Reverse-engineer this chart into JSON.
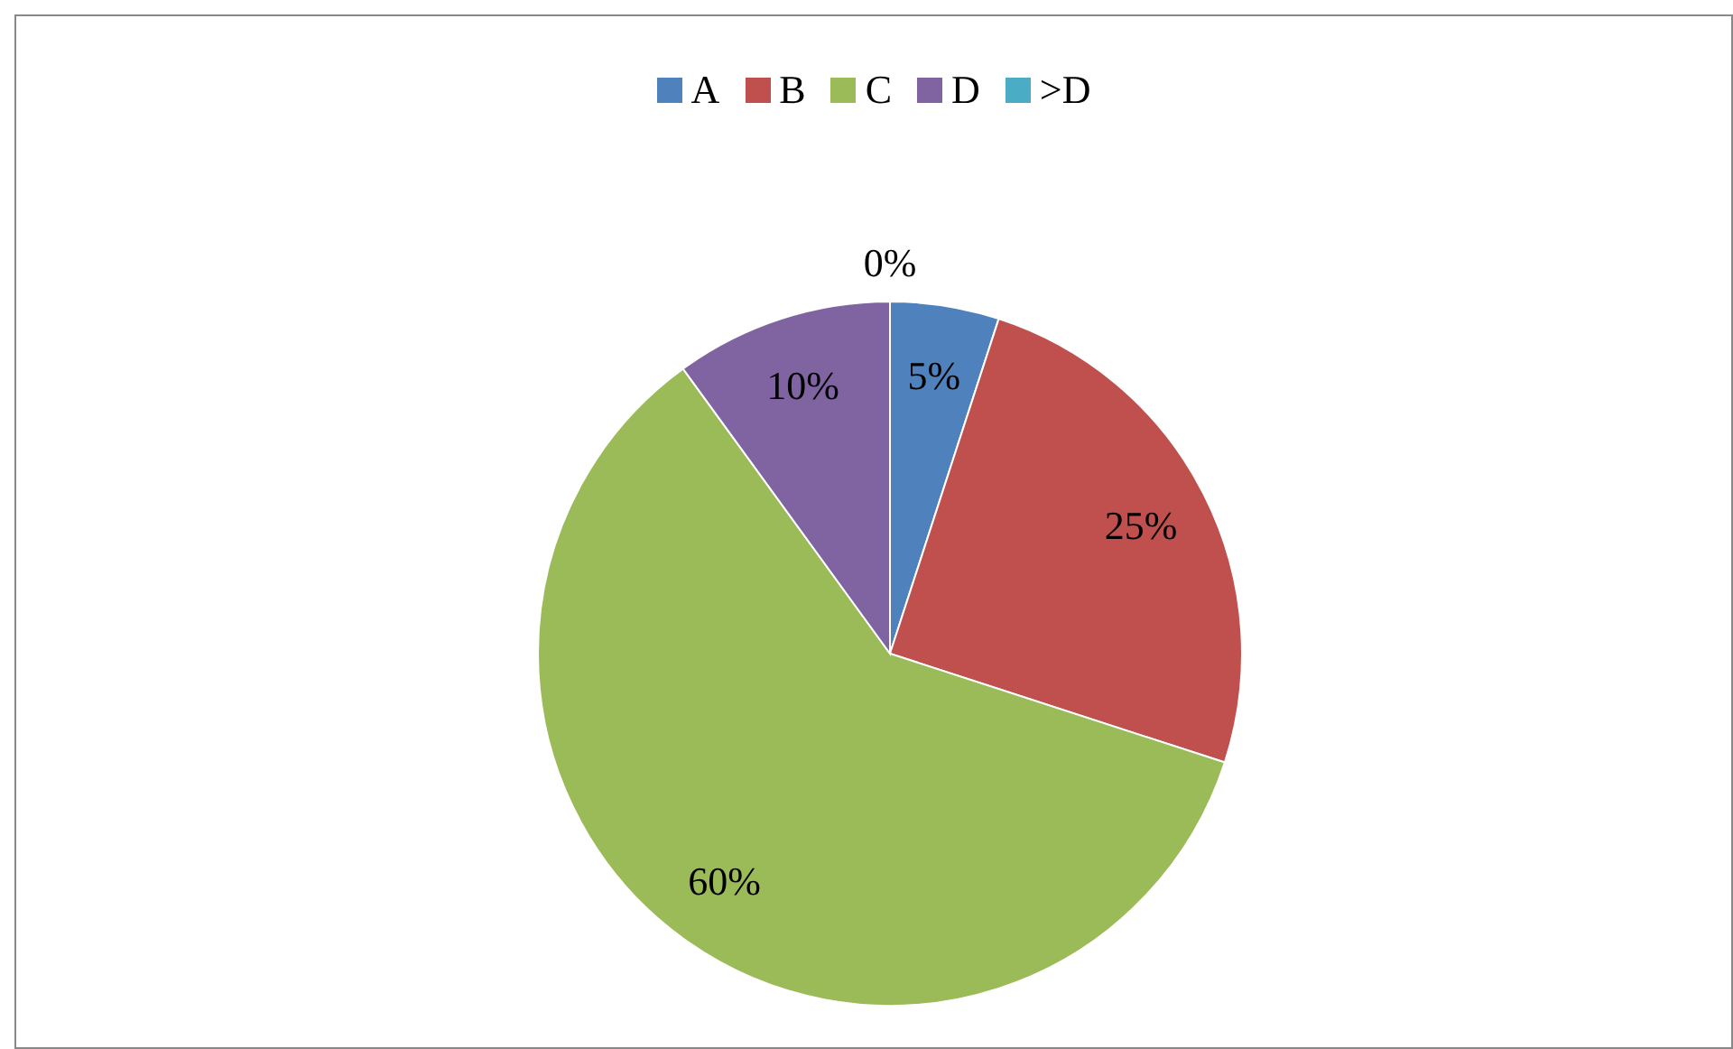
{
  "chart_data": {
    "type": "pie",
    "categories": [
      "A",
      "B",
      "C",
      "D",
      ">D"
    ],
    "values": [
      5,
      25,
      60,
      10,
      0
    ],
    "colors": [
      "#4f81bd",
      "#c0504d",
      "#9bbb59",
      "#8064a2",
      "#4bacc6"
    ],
    "value_labels": [
      "5%",
      "25%",
      "60%",
      "10%",
      "0%"
    ],
    "legend": "top"
  }
}
